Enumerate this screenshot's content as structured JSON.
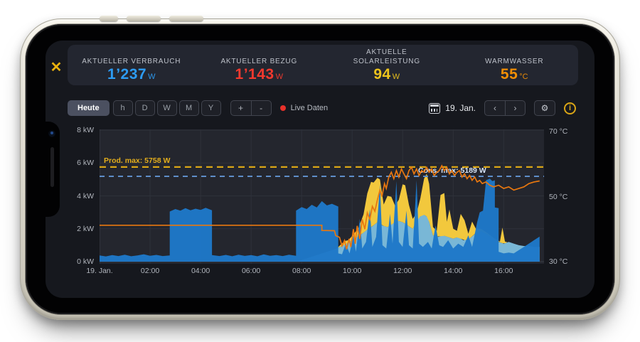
{
  "header": {
    "close_icon": "✕",
    "stats": [
      {
        "label": "AKTUELLER VERBRAUCH",
        "value": "1’237",
        "unit": "W",
        "color": "#2d9cf4"
      },
      {
        "label": "AKTUELLER BEZUG",
        "value": "1’143",
        "unit": "W",
        "color": "#f4392e"
      },
      {
        "label": "AKTUELLE SOLARLEISTUNG",
        "value": "94",
        "unit": "W",
        "color": "#eec41c"
      },
      {
        "label": "WARMWASSER",
        "value": "55",
        "unit": "°C",
        "color": "#f28f06"
      }
    ]
  },
  "toolbar": {
    "today_label": "Heute",
    "range_buttons": [
      "h",
      "D",
      "W",
      "M",
      "Y"
    ],
    "zoom_buttons": [
      "+",
      "-"
    ],
    "live_label": "Live Daten",
    "live_color": "#e8312a",
    "date_label": "19. Jan.",
    "prev_icon": "‹",
    "next_icon": "›",
    "gear_icon": "⚙",
    "info_icon": "i"
  },
  "chart_data": {
    "type": "area",
    "x_unit": "hours_of_day",
    "x_range": [
      0,
      17.6
    ],
    "grid": true,
    "plot_bg": "#24262e",
    "left_axis": {
      "title": "power",
      "unit": "kW",
      "range": [
        0,
        8
      ],
      "ticks": [
        8,
        6,
        4,
        2,
        0
      ],
      "labels": [
        "8 kW",
        "6 kW",
        "4 kW",
        "2 kW",
        "0 kW"
      ]
    },
    "right_axis": {
      "title": "temperature",
      "unit": "°C",
      "range": [
        30,
        70
      ],
      "ticks": [
        70,
        50,
        30
      ],
      "labels": [
        "70 °C",
        "50 °C",
        "30 °C"
      ]
    },
    "x_ticks": {
      "hours": [
        0,
        2,
        4,
        6,
        8,
        10,
        12,
        14,
        16
      ],
      "labels": [
        "19. Jan.",
        "02:00",
        "04:00",
        "06:00",
        "08:00",
        "10:00",
        "12:00",
        "14:00",
        "16:00"
      ]
    },
    "annotations": [
      {
        "label": "Prod. max: 5758 W",
        "value_w": 5758,
        "line_color": "#d9a516",
        "text_color": "#e5af1c",
        "style": "dashed",
        "label_side": "left"
      },
      {
        "label": "Cons. max: 5189 W",
        "value_w": 5189,
        "line_color": "#5e8ec9",
        "text_color": "#d8e6f8",
        "style": "dashed",
        "label_side": "right"
      }
    ],
    "series": [
      {
        "name": "self_consumption_teal",
        "type": "area",
        "axis": "kW",
        "color": "#79b7d6",
        "stack": "base",
        "points": [
          [
            0,
            0
          ],
          [
            7.85,
            0.02
          ],
          [
            8.1,
            0.15
          ],
          [
            8.4,
            0.3
          ],
          [
            8.7,
            0.45
          ],
          [
            9,
            0.6
          ],
          [
            9.3,
            0.75
          ],
          [
            9.6,
            0.95
          ],
          [
            9.85,
            1.15
          ],
          [
            10.1,
            1.4
          ],
          [
            10.35,
            1.65
          ],
          [
            10.6,
            1.95
          ],
          [
            10.8,
            2.15
          ],
          [
            11,
            2.4
          ],
          [
            11.2,
            2.2
          ],
          [
            11.4,
            2.1
          ],
          [
            11.6,
            2.3
          ],
          [
            11.8,
            2.5
          ],
          [
            12,
            2.4
          ],
          [
            12.2,
            2.2
          ],
          [
            12.4,
            2
          ],
          [
            12.6,
            2.6
          ],
          [
            12.8,
            2.9
          ],
          [
            13,
            2.7
          ],
          [
            13.2,
            1.6
          ],
          [
            13.4,
            1.5
          ],
          [
            13.6,
            1.6
          ],
          [
            13.8,
            1.5
          ],
          [
            14,
            1.4
          ],
          [
            14.2,
            1.5
          ],
          [
            14.4,
            1.3
          ],
          [
            14.6,
            1.35
          ],
          [
            14.8,
            1.6
          ],
          [
            15,
            1.9
          ],
          [
            15.2,
            1.8
          ],
          [
            15.4,
            1.6
          ],
          [
            15.6,
            1.4
          ],
          [
            15.8,
            1.2
          ],
          [
            16,
            1.1
          ],
          [
            16.2,
            1.2
          ],
          [
            16.4,
            1.1
          ],
          [
            16.6,
            1
          ],
          [
            16.8,
            0.95
          ],
          [
            17,
            0.95
          ],
          [
            17.2,
            0.9
          ],
          [
            17.42,
            0.9
          ],
          [
            17.42,
            0
          ]
        ]
      },
      {
        "name": "solar_production_yellow",
        "type": "area",
        "axis": "kW",
        "color": "#f2c83d",
        "stack": "on_self_consumption",
        "points": [
          [
            0,
            0
          ],
          [
            9.4,
            0
          ],
          [
            9.55,
            0.12
          ],
          [
            9.7,
            0.22
          ],
          [
            9.85,
            0.15
          ],
          [
            10.05,
            0.3
          ],
          [
            10.25,
            0.5
          ],
          [
            10.45,
            1.1
          ],
          [
            10.6,
            2.2
          ],
          [
            10.75,
            2.75
          ],
          [
            10.85,
            2.6
          ],
          [
            11,
            2.7
          ],
          [
            11.1,
            2.7
          ],
          [
            11.25,
            1.3
          ],
          [
            11.4,
            1.9
          ],
          [
            11.55,
            1.7
          ],
          [
            11.7,
            1
          ],
          [
            11.85,
            1.3
          ],
          [
            12,
            2.3
          ],
          [
            12.1,
            2.35
          ],
          [
            12.25,
            1.3
          ],
          [
            12.4,
            0.6
          ],
          [
            12.55,
            0.5
          ],
          [
            12.7,
            1.1
          ],
          [
            12.85,
            2.2
          ],
          [
            12.95,
            2.6
          ],
          [
            13.05,
            2.3
          ],
          [
            13.2,
            0.5
          ],
          [
            13.35,
            0.35
          ],
          [
            13.5,
            2.5
          ],
          [
            13.65,
            2.6
          ],
          [
            13.75,
            0.9
          ],
          [
            13.85,
            1.7
          ],
          [
            14,
            0.6
          ],
          [
            14.15,
            0.4
          ],
          [
            14.3,
            1.5
          ],
          [
            14.45,
            1.2
          ],
          [
            14.6,
            0.35
          ],
          [
            14.75,
            0.9
          ],
          [
            14.9,
            0.25
          ],
          [
            15.1,
            0.15
          ],
          [
            15.35,
            0.1
          ],
          [
            15.6,
            0.05
          ],
          [
            15.85,
            0.05
          ],
          [
            15.95,
            0.95
          ],
          [
            16.05,
            0.1
          ],
          [
            16.15,
            0
          ],
          [
            17.42,
            0
          ]
        ]
      },
      {
        "name": "consumption_blue",
        "type": "area",
        "axis": "kW",
        "color": "#1e78c8",
        "points": [
          [
            0,
            0.38
          ],
          [
            0.25,
            0.32
          ],
          [
            0.5,
            0.4
          ],
          [
            0.75,
            0.34
          ],
          [
            1,
            0.42
          ],
          [
            1.25,
            0.33
          ],
          [
            1.5,
            0.38
          ],
          [
            1.75,
            0.45
          ],
          [
            2,
            0.36
          ],
          [
            2.25,
            0.41
          ],
          [
            2.5,
            0.34
          ],
          [
            2.78,
            0.38
          ],
          [
            2.78,
            3.05
          ],
          [
            3,
            3.2
          ],
          [
            3.2,
            3.1
          ],
          [
            3.4,
            3.25
          ],
          [
            3.6,
            3.12
          ],
          [
            3.8,
            3.22
          ],
          [
            4,
            3.15
          ],
          [
            4.2,
            3.28
          ],
          [
            4.45,
            3.12
          ],
          [
            4.45,
            0.4
          ],
          [
            4.75,
            0.34
          ],
          [
            5,
            0.41
          ],
          [
            5.25,
            0.33
          ],
          [
            5.5,
            0.42
          ],
          [
            5.75,
            0.35
          ],
          [
            6,
            0.4
          ],
          [
            6.25,
            0.33
          ],
          [
            6.5,
            0.44
          ],
          [
            6.75,
            0.36
          ],
          [
            7,
            0.4
          ],
          [
            7.25,
            0.34
          ],
          [
            7.5,
            0.42
          ],
          [
            7.78,
            0.36
          ],
          [
            7.78,
            3.1
          ],
          [
            8,
            3.32
          ],
          [
            8.2,
            3.2
          ],
          [
            8.4,
            3.46
          ],
          [
            8.6,
            3.3
          ],
          [
            8.8,
            3.68
          ],
          [
            9,
            3.42
          ],
          [
            9.2,
            3.52
          ],
          [
            9.45,
            3.35
          ],
          [
            9.45,
            0.5
          ],
          [
            9.6,
            0.45
          ],
          [
            9.75,
            1.1
          ],
          [
            9.9,
            0.5
          ],
          [
            10.05,
            1.6
          ],
          [
            10.15,
            0.6
          ],
          [
            10.3,
            2.6
          ],
          [
            10.4,
            0.8
          ],
          [
            10.55,
            1.2
          ],
          [
            10.7,
            3.2
          ],
          [
            10.8,
            0.9
          ],
          [
            10.95,
            1.5
          ],
          [
            11.1,
            4.7
          ],
          [
            11.2,
            1
          ],
          [
            11.35,
            0.8
          ],
          [
            11.5,
            2.9
          ],
          [
            11.6,
            1.1
          ],
          [
            11.75,
            4.9
          ],
          [
            11.85,
            1.2
          ],
          [
            12,
            0.9
          ],
          [
            12.15,
            3.1
          ],
          [
            12.25,
            1
          ],
          [
            12.4,
            0.8
          ],
          [
            12.55,
            4.95
          ],
          [
            12.65,
            1.1
          ],
          [
            12.8,
            0.9
          ],
          [
            13,
            1.2
          ],
          [
            13.15,
            0.8
          ],
          [
            13.3,
            2.2
          ],
          [
            13.45,
            1
          ],
          [
            13.6,
            0.9
          ],
          [
            13.8,
            1.3
          ],
          [
            14,
            0.8
          ],
          [
            14.2,
            1.1
          ],
          [
            14.4,
            0.9
          ],
          [
            14.6,
            1.6
          ],
          [
            14.75,
            0.9
          ],
          [
            14.95,
            2.4
          ],
          [
            15.05,
            3
          ],
          [
            15.18,
            3.1
          ],
          [
            15.3,
            4.95
          ],
          [
            15.45,
            5.05
          ],
          [
            15.55,
            4.9
          ],
          [
            15.65,
            4.95
          ],
          [
            15.65,
            3.3
          ],
          [
            15.8,
            3.25
          ],
          [
            15.8,
            0.6
          ],
          [
            16,
            0.5
          ],
          [
            16.2,
            0.55
          ],
          [
            16.4,
            0.5
          ],
          [
            16.6,
            0.7
          ],
          [
            16.8,
            0.9
          ],
          [
            17,
            1.1
          ],
          [
            17.2,
            1.3
          ],
          [
            17.42,
            1.52
          ],
          [
            17.42,
            0
          ]
        ]
      },
      {
        "name": "water_temperature_orange",
        "type": "line",
        "axis": "°C",
        "color": "#e8770f",
        "points": [
          [
            0,
            41.2
          ],
          [
            2,
            41.2
          ],
          [
            4,
            41.2
          ],
          [
            6,
            41.2
          ],
          [
            8,
            41.2
          ],
          [
            8.8,
            41.2
          ],
          [
            8.8,
            39.6
          ],
          [
            9.3,
            39.5
          ],
          [
            9.35,
            38
          ],
          [
            9.5,
            37.5
          ],
          [
            9.6,
            34.8
          ],
          [
            9.7,
            36.5
          ],
          [
            9.78,
            33.8
          ],
          [
            9.88,
            37
          ],
          [
            9.95,
            34.5
          ],
          [
            10.05,
            40
          ],
          [
            10.12,
            35.5
          ],
          [
            10.2,
            41
          ],
          [
            10.3,
            37
          ],
          [
            10.4,
            43
          ],
          [
            10.5,
            40
          ],
          [
            10.6,
            45
          ],
          [
            10.7,
            43
          ],
          [
            10.8,
            47
          ],
          [
            10.9,
            45.5
          ],
          [
            11,
            49
          ],
          [
            11.1,
            52
          ],
          [
            11.18,
            50
          ],
          [
            11.28,
            54
          ],
          [
            11.35,
            52.5
          ],
          [
            11.45,
            56
          ],
          [
            11.55,
            57.5
          ],
          [
            11.65,
            55.5
          ],
          [
            11.75,
            58
          ],
          [
            11.85,
            56
          ],
          [
            11.95,
            58.5
          ],
          [
            12.05,
            57
          ],
          [
            12.15,
            55.5
          ],
          [
            12.25,
            58
          ],
          [
            12.35,
            59
          ],
          [
            12.45,
            57
          ],
          [
            12.55,
            58.5
          ],
          [
            12.65,
            56.5
          ],
          [
            12.75,
            58
          ],
          [
            12.85,
            57.5
          ],
          [
            12.95,
            59
          ],
          [
            13.05,
            57.5
          ],
          [
            13.15,
            58.5
          ],
          [
            13.25,
            56.5
          ],
          [
            13.35,
            57.5
          ],
          [
            13.45,
            58
          ],
          [
            13.55,
            59.5
          ],
          [
            13.65,
            58
          ],
          [
            13.75,
            59
          ],
          [
            13.85,
            57
          ],
          [
            13.95,
            58
          ],
          [
            14.05,
            56.5
          ],
          [
            14.15,
            57.5
          ],
          [
            14.25,
            58
          ],
          [
            14.35,
            56
          ],
          [
            14.45,
            57
          ],
          [
            14.55,
            55.5
          ],
          [
            14.65,
            56.5
          ],
          [
            14.75,
            55
          ],
          [
            14.85,
            56
          ],
          [
            14.95,
            54.5
          ],
          [
            15.05,
            55
          ],
          [
            15.15,
            54
          ],
          [
            15.3,
            54.5
          ],
          [
            15.45,
            53.5
          ],
          [
            15.6,
            53
          ],
          [
            15.8,
            53.5
          ],
          [
            16,
            52.5
          ],
          [
            16.2,
            53
          ],
          [
            16.4,
            52
          ],
          [
            16.6,
            52.5
          ],
          [
            16.8,
            53
          ],
          [
            17,
            54
          ],
          [
            17.2,
            54.5
          ],
          [
            17.42,
            54.8
          ]
        ]
      }
    ]
  }
}
